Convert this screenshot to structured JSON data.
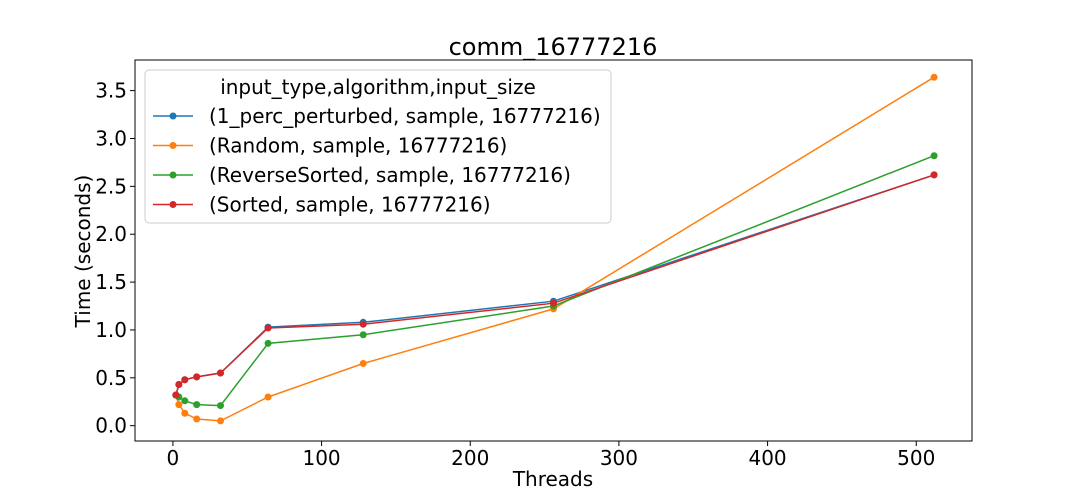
{
  "chart_data": {
    "type": "line",
    "title": "comm_16777216",
    "xlabel": "Threads",
    "ylabel": "Time (seconds)",
    "xlim": [
      -25.5,
      537.5
    ],
    "ylim": [
      -0.16,
      3.82
    ],
    "xticks": [
      0,
      100,
      200,
      300,
      400,
      500
    ],
    "yticks": [
      0.0,
      0.5,
      1.0,
      1.5,
      2.0,
      2.5,
      3.0,
      3.5
    ],
    "xtick_labels": [
      "0",
      "100",
      "200",
      "300",
      "400",
      "500"
    ],
    "ytick_labels": [
      "0.0",
      "0.5",
      "1.0",
      "1.5",
      "2.0",
      "2.5",
      "3.0",
      "3.5"
    ],
    "grid": false,
    "legend_title": "input_type,algorithm,input_size",
    "legend_position": "upper-left",
    "x": [
      2,
      4,
      8,
      16,
      32,
      64,
      128,
      256,
      512
    ],
    "series": [
      {
        "name": "(1_perc_perturbed, sample, 16777216)",
        "color": "#1f77b4",
        "values": [
          0.32,
          0.43,
          0.48,
          0.51,
          0.55,
          1.03,
          1.08,
          1.3,
          2.62
        ]
      },
      {
        "name": "(Random, sample, 16777216)",
        "color": "#ff7f0e",
        "values": [
          0.32,
          0.22,
          0.13,
          0.07,
          0.05,
          0.3,
          0.65,
          1.22,
          3.64
        ]
      },
      {
        "name": "(ReverseSorted, sample, 16777216)",
        "color": "#2ca02c",
        "values": [
          0.32,
          0.3,
          0.26,
          0.22,
          0.21,
          0.86,
          0.95,
          1.25,
          2.82
        ]
      },
      {
        "name": "(Sorted, sample, 16777216)",
        "color": "#d62728",
        "values": [
          0.32,
          0.43,
          0.48,
          0.51,
          0.55,
          1.02,
          1.06,
          1.28,
          2.62
        ]
      }
    ]
  }
}
